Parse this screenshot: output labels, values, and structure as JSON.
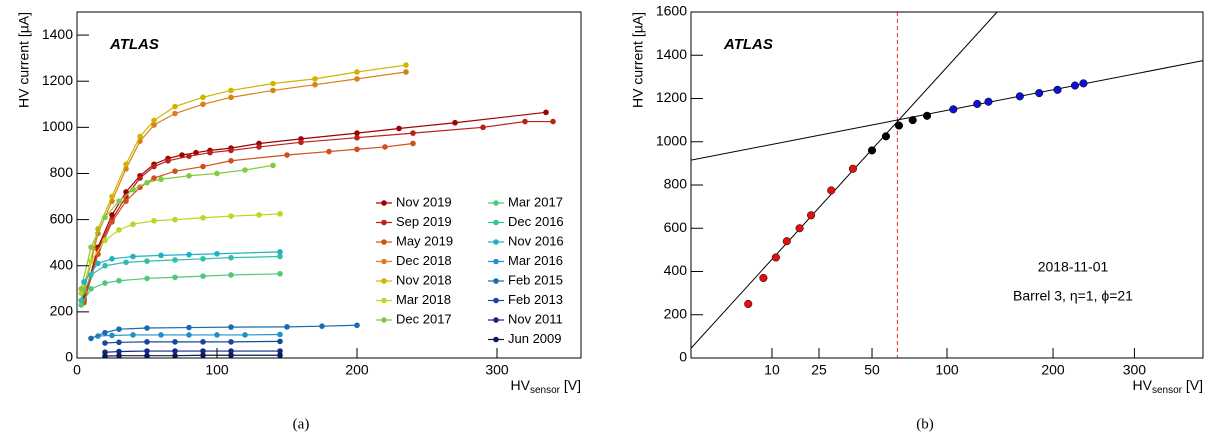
{
  "chart_data": [
    {
      "type": "line",
      "caption": "(a)",
      "annotation": "ATLAS",
      "ylabel": "HV current [µA]",
      "xlabel": {
        "main": "HV",
        "sub": "sensor",
        "unit": " [V]"
      },
      "xlim": [
        0,
        360
      ],
      "ylim": [
        0,
        1500
      ],
      "xticks": [
        0,
        100,
        200,
        300
      ],
      "yticks": [
        0,
        200,
        400,
        600,
        800,
        1000,
        1200,
        1400
      ],
      "series": [
        {
          "name": "Nov 2019",
          "color": "#a00000",
          "x": [
            5,
            15,
            25,
            35,
            45,
            55,
            65,
            75,
            85,
            95,
            110,
            130,
            160,
            200,
            230,
            270,
            335
          ],
          "values": [
            260,
            480,
            620,
            720,
            790,
            840,
            865,
            880,
            890,
            900,
            910,
            930,
            950,
            975,
            995,
            1020,
            1065
          ]
        },
        {
          "name": "Sep 2019",
          "color": "#b8201a",
          "x": [
            5,
            15,
            25,
            35,
            45,
            55,
            65,
            80,
            95,
            110,
            130,
            160,
            200,
            240,
            290,
            320,
            340
          ],
          "values": [
            250,
            470,
            600,
            700,
            780,
            830,
            855,
            875,
            890,
            900,
            915,
            935,
            955,
            975,
            1000,
            1025,
            1025
          ]
        },
        {
          "name": "May 2019",
          "color": "#d0501c",
          "x": [
            5,
            15,
            25,
            35,
            45,
            55,
            70,
            90,
            110,
            150,
            180,
            200,
            220,
            240
          ],
          "values": [
            240,
            450,
            590,
            680,
            740,
            780,
            810,
            830,
            855,
            880,
            895,
            905,
            915,
            930
          ]
        },
        {
          "name": "Dec 2018",
          "color": "#d8801a",
          "x": [
            5,
            15,
            25,
            35,
            45,
            55,
            70,
            90,
            110,
            140,
            170,
            200,
            235
          ],
          "values": [
            290,
            540,
            680,
            820,
            940,
            1010,
            1060,
            1100,
            1130,
            1160,
            1185,
            1210,
            1240
          ]
        },
        {
          "name": "Nov 2018",
          "color": "#d0b400",
          "x": [
            5,
            15,
            25,
            35,
            45,
            55,
            70,
            90,
            110,
            140,
            170,
            200,
            235
          ],
          "values": [
            300,
            560,
            700,
            840,
            960,
            1030,
            1090,
            1130,
            1160,
            1190,
            1210,
            1240,
            1270
          ]
        },
        {
          "name": "Mar 2018",
          "color": "#b8d828",
          "x": [
            3,
            10,
            20,
            30,
            40,
            55,
            70,
            90,
            110,
            130,
            145
          ],
          "values": [
            280,
            420,
            510,
            555,
            580,
            595,
            600,
            608,
            615,
            620,
            625
          ]
        },
        {
          "name": "Dec 2017",
          "color": "#80cc40",
          "x": [
            3,
            10,
            20,
            30,
            40,
            50,
            60,
            80,
            100,
            120,
            140
          ],
          "values": [
            300,
            480,
            610,
            680,
            730,
            760,
            775,
            790,
            800,
            815,
            835
          ]
        },
        {
          "name": "Mar 2017",
          "color": "#50c878",
          "x": [
            3,
            10,
            20,
            30,
            50,
            70,
            90,
            110,
            145
          ],
          "values": [
            230,
            300,
            325,
            335,
            345,
            350,
            355,
            360,
            365
          ]
        },
        {
          "name": "Dec 2016",
          "color": "#30c0a8",
          "x": [
            3,
            10,
            20,
            35,
            50,
            70,
            90,
            110,
            145
          ],
          "values": [
            250,
            360,
            400,
            415,
            420,
            425,
            430,
            435,
            440
          ]
        },
        {
          "name": "Nov 2016",
          "color": "#20b0c8",
          "x": [
            5,
            15,
            25,
            40,
            60,
            80,
            100,
            145
          ],
          "values": [
            330,
            410,
            430,
            440,
            445,
            448,
            452,
            460
          ]
        },
        {
          "name": "Mar 2016",
          "color": "#2090c8",
          "x": [
            15,
            25,
            40,
            60,
            80,
            100,
            120,
            145
          ],
          "values": [
            95,
            98,
            100,
            100,
            100,
            100,
            100,
            102
          ]
        },
        {
          "name": "Feb 2015",
          "color": "#1a6ab0",
          "x": [
            10,
            20,
            30,
            50,
            80,
            110,
            150,
            175,
            200
          ],
          "values": [
            85,
            110,
            125,
            130,
            132,
            134,
            135,
            138,
            142
          ]
        },
        {
          "name": "Feb 2013",
          "color": "#154a9a",
          "x": [
            20,
            30,
            50,
            70,
            90,
            110,
            145
          ],
          "values": [
            65,
            68,
            70,
            70,
            70,
            70,
            72
          ]
        },
        {
          "name": "Nov 2011",
          "color": "#102a80",
          "x": [
            20,
            30,
            50,
            70,
            90,
            110,
            145
          ],
          "values": [
            25,
            28,
            30,
            30,
            30,
            30,
            30
          ]
        },
        {
          "name": "Jun 2009",
          "color": "#0a1a60",
          "x": [
            20,
            30,
            50,
            70,
            90,
            110,
            145
          ],
          "values": [
            8,
            10,
            10,
            10,
            12,
            12,
            12
          ]
        }
      ]
    },
    {
      "type": "scatter",
      "caption": "(b)",
      "annotation": "ATLAS",
      "xscale": "sqrt",
      "ylabel": "HV current [µA]",
      "xlabel": {
        "main": "HV",
        "sub": "sensor",
        "unit": " [V]"
      },
      "notes": [
        "2018-11-01",
        "Barrel 3, η=1, ϕ=21"
      ],
      "xlim": [
        0,
        400
      ],
      "ylim": [
        0,
        1600
      ],
      "xticks": [
        10,
        25,
        50,
        100,
        200,
        300
      ],
      "yticks": [
        0,
        200,
        400,
        600,
        800,
        1000,
        1200,
        1400,
        1600
      ],
      "vline": 65,
      "vline_color": "#e03030",
      "lines": [
        {
          "color": "#000000",
          "x": [
            0,
            143
          ],
          "values": [
            45,
            1600
          ]
        },
        {
          "color": "#000000",
          "x": [
            0,
            400
          ],
          "values": [
            915,
            1375
          ]
        }
      ],
      "series": [
        {
          "color": "#e01010",
          "x": [
            5,
            8,
            11,
            14,
            18,
            22,
            30,
            40
          ],
          "values": [
            250,
            370,
            465,
            540,
            600,
            660,
            775,
            875
          ]
        },
        {
          "color": "#000000",
          "x": [
            50,
            58,
            66,
            75,
            85
          ],
          "values": [
            960,
            1025,
            1075,
            1100,
            1120
          ]
        },
        {
          "color": "#1010d0",
          "x": [
            105,
            125,
            135,
            165,
            185,
            205,
            225,
            235
          ],
          "values": [
            1150,
            1175,
            1185,
            1210,
            1225,
            1240,
            1260,
            1270
          ]
        }
      ]
    }
  ]
}
